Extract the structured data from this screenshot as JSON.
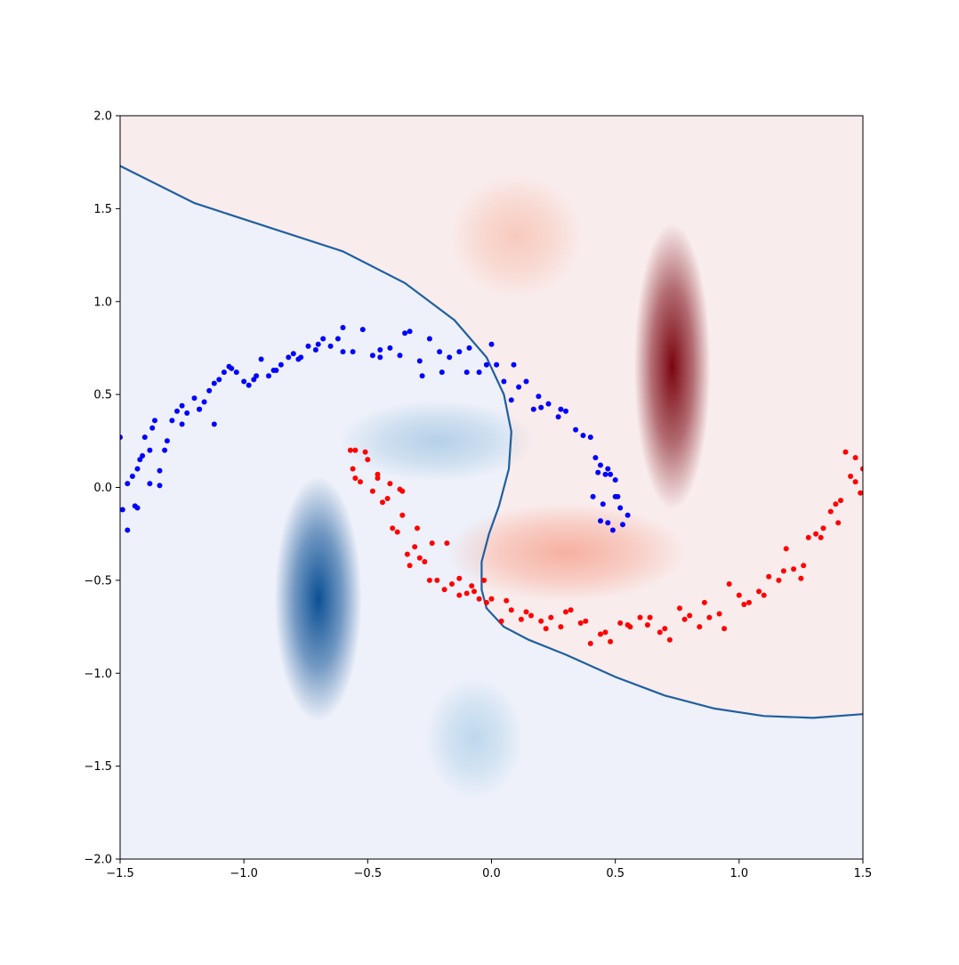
{
  "chart_data": {
    "type": "scatter",
    "title": "",
    "xlabel": "",
    "ylabel": "",
    "xlim": [
      -1.5,
      1.5
    ],
    "ylim": [
      -2.0,
      2.0
    ],
    "x_ticks": [
      -1.5,
      -1.0,
      -0.5,
      0.0,
      0.5,
      1.0,
      1.5
    ],
    "x_tick_labels": [
      "−1.5",
      "−1.0",
      "−0.5",
      "0.0",
      "0.5",
      "1.0",
      "1.5"
    ],
    "y_ticks": [
      2.0,
      1.5,
      1.0,
      0.5,
      0.0,
      -0.5,
      -1.0,
      -1.5,
      -2.0
    ],
    "y_tick_labels": [
      "2.0",
      "1.5",
      "1.0",
      "0.5",
      "0.0",
      "−0.5",
      "−1.0",
      "−1.5",
      "−2.0"
    ],
    "grid": false,
    "legend": "none",
    "background": {
      "description": "filled decision-score contour (diverging blue-to-red colormap)",
      "negative_region_color": "#eef1fa",
      "positive_region_color": "#f9ecec",
      "blobs": [
        {
          "sign": "positive",
          "color": "#7a0510",
          "center": [
            0.73,
            0.65
          ],
          "spread": [
            0.07,
            0.35
          ],
          "peak": 1.0
        },
        {
          "sign": "positive",
          "color": "#f47f62",
          "center": [
            0.3,
            -0.35
          ],
          "spread": [
            0.22,
            0.12
          ],
          "peak": 0.55
        },
        {
          "sign": "positive",
          "color": "#f6a083",
          "center": [
            0.1,
            1.35
          ],
          "spread": [
            0.12,
            0.15
          ],
          "peak": 0.45
        },
        {
          "sign": "negative",
          "color": "#0b4f94",
          "center": [
            -0.7,
            -0.6
          ],
          "spread": [
            0.08,
            0.3
          ],
          "peak": 1.0
        },
        {
          "sign": "negative",
          "color": "#5f9fcd",
          "center": [
            -0.22,
            0.25
          ],
          "spread": [
            0.18,
            0.1
          ],
          "peak": 0.4
        },
        {
          "sign": "negative",
          "color": "#8dbfe0",
          "center": [
            -0.07,
            -1.35
          ],
          "spread": [
            0.09,
            0.15
          ],
          "peak": 0.5
        }
      ]
    },
    "decision_boundary": {
      "color": "#1f5fa0",
      "x": [
        -1.5,
        -1.2,
        -0.9,
        -0.6,
        -0.35,
        -0.15,
        -0.02,
        0.05,
        0.08,
        0.07,
        0.03,
        -0.01,
        -0.04,
        -0.04,
        -0.02,
        0.05,
        0.15,
        0.3,
        0.5,
        0.7,
        0.9,
        1.1,
        1.3,
        1.5
      ],
      "y": [
        1.73,
        1.53,
        1.4,
        1.27,
        1.1,
        0.9,
        0.7,
        0.5,
        0.3,
        0.1,
        -0.1,
        -0.25,
        -0.4,
        -0.55,
        -0.65,
        -0.75,
        -0.82,
        -0.9,
        -1.02,
        -1.12,
        -1.19,
        -1.23,
        -1.24,
        -1.22
      ]
    },
    "series": [
      {
        "color": "#0000ff",
        "x": [
          -1.5,
          -1.49,
          -1.47,
          -1.45,
          -1.44,
          -1.43,
          -1.42,
          -1.41,
          -1.4,
          -1.38,
          -1.37,
          -1.36,
          -1.34,
          -1.32,
          -1.31,
          -1.29,
          -1.27,
          -1.25,
          -1.23,
          -1.2,
          -1.18,
          -1.16,
          -1.14,
          -1.12,
          -1.1,
          -1.08,
          -1.06,
          -1.03,
          -1.0,
          -0.98,
          -0.96,
          -0.93,
          -0.9,
          -0.88,
          -0.85,
          -0.82,
          -0.8,
          -0.77,
          -0.74,
          -0.71,
          -0.68,
          -0.65,
          -0.62,
          -0.6,
          -0.56,
          -0.52,
          -0.48,
          -0.45,
          -0.41,
          -0.37,
          -0.33,
          -0.29,
          -0.25,
          -0.21,
          -0.17,
          -0.13,
          -0.09,
          -0.05,
          -0.02,
          0.02,
          0.05,
          0.08,
          0.11,
          0.14,
          0.17,
          0.2,
          0.23,
          0.27,
          0.3,
          0.34,
          0.37,
          0.4,
          0.42,
          0.44,
          0.46,
          0.48,
          0.5,
          0.51,
          0.52,
          0.53,
          0.44,
          0.47,
          0.49,
          0.41,
          0.45,
          0.5,
          0.43,
          0.47,
          0.55,
          -1.47,
          -1.43,
          -1.38,
          -1.34,
          -1.25,
          -1.18,
          -1.12,
          -1.05,
          -0.95,
          -0.87,
          -0.78,
          -0.7,
          -0.6,
          -0.45,
          -0.35,
          -0.28,
          -0.2,
          -0.1,
          0.0,
          0.09,
          0.19,
          0.28
        ],
        "y": [
          0.27,
          -0.12,
          0.02,
          0.06,
          -0.1,
          0.1,
          0.15,
          0.17,
          0.27,
          0.2,
          0.32,
          0.36,
          0.09,
          0.2,
          0.25,
          0.36,
          0.41,
          0.44,
          0.4,
          0.48,
          0.42,
          0.46,
          0.52,
          0.56,
          0.58,
          0.62,
          0.65,
          0.62,
          0.57,
          0.55,
          0.58,
          0.69,
          0.6,
          0.63,
          0.66,
          0.7,
          0.72,
          0.7,
          0.76,
          0.74,
          0.8,
          0.76,
          0.8,
          0.86,
          0.73,
          0.85,
          0.71,
          0.7,
          0.75,
          0.71,
          0.84,
          0.68,
          0.8,
          0.73,
          0.7,
          0.73,
          0.75,
          0.62,
          0.66,
          0.66,
          0.57,
          0.47,
          0.54,
          0.57,
          0.42,
          0.43,
          0.45,
          0.38,
          0.41,
          0.31,
          0.28,
          0.27,
          0.16,
          0.12,
          0.07,
          0.07,
          0.04,
          -0.05,
          -0.11,
          -0.2,
          -0.18,
          -0.19,
          -0.23,
          -0.05,
          -0.09,
          -0.05,
          0.08,
          0.1,
          -0.15,
          -0.23,
          -0.11,
          0.02,
          0.01,
          0.34,
          0.42,
          0.34,
          0.64,
          0.6,
          0.63,
          0.69,
          0.77,
          0.73,
          0.74,
          0.83,
          0.6,
          0.62,
          0.62,
          0.77,
          0.66,
          0.49,
          0.42
        ],
        "name": ""
      },
      {
        "color": "#ff0000",
        "x": [
          -0.57,
          -0.56,
          -0.55,
          -0.53,
          -0.5,
          -0.48,
          -0.46,
          -0.44,
          -0.42,
          -0.4,
          -0.38,
          -0.37,
          -0.36,
          -0.34,
          -0.33,
          -0.31,
          -0.29,
          -0.27,
          -0.25,
          -0.22,
          -0.19,
          -0.16,
          -0.13,
          -0.1,
          -0.07,
          -0.05,
          -0.03,
          0.0,
          0.04,
          0.08,
          0.12,
          0.16,
          0.2,
          0.24,
          0.28,
          0.32,
          0.36,
          0.4,
          0.44,
          0.48,
          0.52,
          0.56,
          0.6,
          0.64,
          0.68,
          0.72,
          0.76,
          0.8,
          0.84,
          0.88,
          0.92,
          0.96,
          1.0,
          1.04,
          1.08,
          1.12,
          1.16,
          1.19,
          1.22,
          1.25,
          1.28,
          1.31,
          1.34,
          1.37,
          1.39,
          1.41,
          1.43,
          1.45,
          1.47,
          1.49,
          1.5,
          -0.55,
          -0.51,
          -0.46,
          -0.41,
          -0.36,
          -0.3,
          -0.24,
          -0.18,
          -0.13,
          -0.08,
          -0.02,
          0.06,
          0.14,
          0.22,
          0.3,
          0.38,
          0.46,
          0.55,
          0.63,
          0.7,
          0.78,
          0.86,
          0.94,
          1.02,
          1.1,
          1.18,
          1.26,
          1.33,
          1.4,
          1.47
        ],
        "y": [
          0.2,
          0.1,
          0.2,
          0.03,
          0.15,
          -0.02,
          0.07,
          -0.08,
          -0.06,
          -0.22,
          -0.24,
          -0.01,
          -0.15,
          -0.36,
          -0.42,
          -0.32,
          -0.38,
          -0.4,
          -0.5,
          -0.5,
          -0.55,
          -0.52,
          -0.49,
          -0.57,
          -0.56,
          -0.6,
          -0.5,
          -0.6,
          -0.72,
          -0.66,
          -0.71,
          -0.69,
          -0.72,
          -0.7,
          -0.75,
          -0.66,
          -0.73,
          -0.84,
          -0.79,
          -0.83,
          -0.73,
          -0.75,
          -0.7,
          -0.7,
          -0.78,
          -0.82,
          -0.65,
          -0.69,
          -0.75,
          -0.7,
          -0.68,
          -0.52,
          -0.58,
          -0.62,
          -0.56,
          -0.48,
          -0.5,
          -0.33,
          -0.44,
          -0.49,
          -0.27,
          -0.25,
          -0.22,
          -0.13,
          -0.09,
          -0.07,
          0.19,
          0.06,
          0.03,
          -0.03,
          0.1,
          0.05,
          0.19,
          0.05,
          0.02,
          -0.02,
          -0.22,
          -0.3,
          -0.3,
          -0.58,
          -0.53,
          -0.62,
          -0.61,
          -0.67,
          -0.76,
          -0.67,
          -0.72,
          -0.78,
          -0.74,
          -0.74,
          -0.76,
          -0.71,
          -0.62,
          -0.76,
          -0.63,
          -0.58,
          -0.45,
          -0.42,
          -0.27,
          -0.19,
          0.16
        ],
        "name": ""
      }
    ]
  }
}
